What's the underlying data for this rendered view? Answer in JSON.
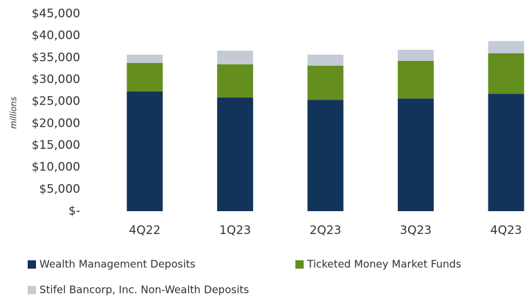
{
  "chart_data": {
    "type": "stacked_bar",
    "y_axis_label": "millions",
    "categories": [
      "4Q22",
      "1Q23",
      "2Q23",
      "3Q23",
      "4Q23"
    ],
    "series": [
      {
        "name": "Wealth Management Deposits",
        "color": "#12345a",
        "values": [
          27300,
          25900,
          25400,
          25700,
          26800
        ]
      },
      {
        "name": "Ticketed Money Market Funds",
        "color": "#648f1f",
        "values": [
          6500,
          7600,
          7800,
          8600,
          9200
        ]
      },
      {
        "name": "Stifel Bancorp, Inc. Non-Wealth Deposits",
        "color": "#c5cbd6",
        "values": [
          1900,
          3100,
          2500,
          2500,
          2800
        ]
      }
    ],
    "ylim": [
      0,
      45000
    ],
    "yticks": [
      {
        "value": 0,
        "label": "$-"
      },
      {
        "value": 5000,
        "label": "$5,000"
      },
      {
        "value": 10000,
        "label": "$10,000"
      },
      {
        "value": 15000,
        "label": "$15,000"
      },
      {
        "value": 20000,
        "label": "$20,000"
      },
      {
        "value": 25000,
        "label": "$25,000"
      },
      {
        "value": 30000,
        "label": "$30,000"
      },
      {
        "value": 35000,
        "label": "$35,000"
      },
      {
        "value": 40000,
        "label": "$40,000"
      },
      {
        "value": 45000,
        "label": "$45,000"
      }
    ],
    "grid": false
  }
}
